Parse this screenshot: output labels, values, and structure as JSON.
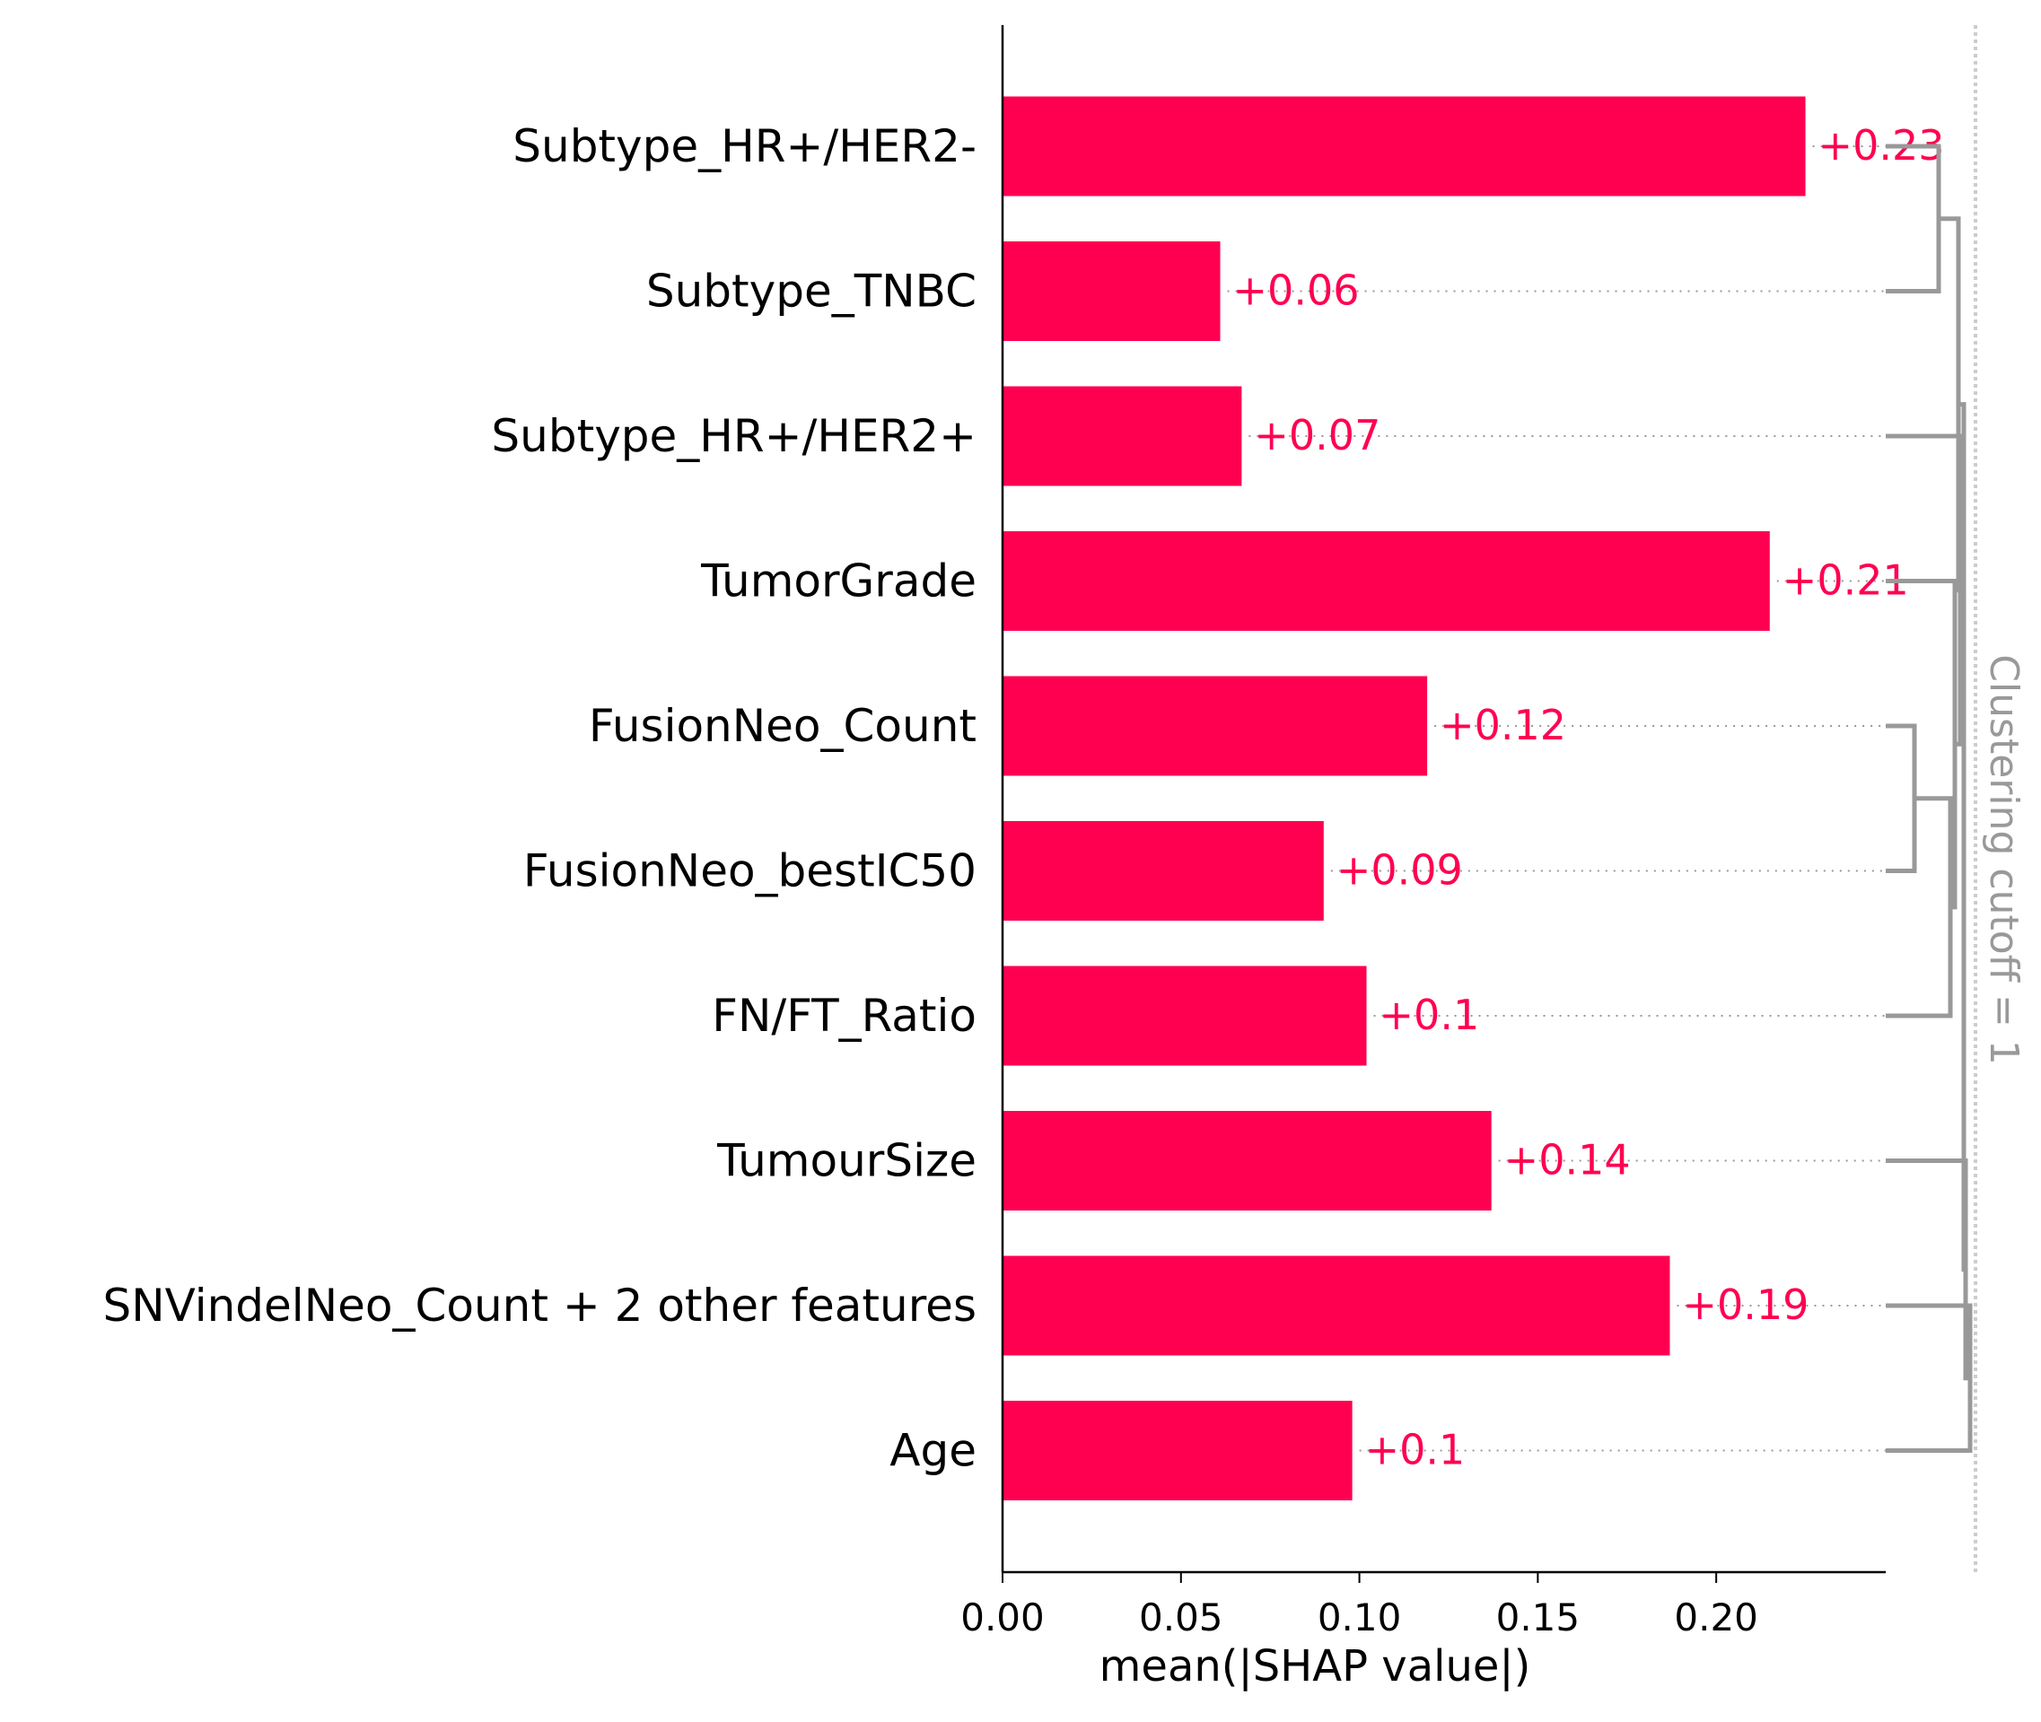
{
  "chart_data": {
    "type": "bar",
    "orientation": "horizontal",
    "categories": [
      "Subtype_HR+/HER2-",
      "Subtype_TNBC",
      "Subtype_HR+/HER2+",
      "TumorGrade",
      "FusionNeo_Count",
      "FusionNeo_bestIC50",
      "FN/FT_Ratio",
      "TumourSize",
      "SNVindelNeo_Count + 2 other features",
      "Age"
    ],
    "values": [
      0.225,
      0.061,
      0.067,
      0.215,
      0.119,
      0.09,
      0.102,
      0.137,
      0.187,
      0.098
    ],
    "data_labels": [
      "+0.23",
      "+0.06",
      "+0.07",
      "+0.21",
      "+0.12",
      "+0.09",
      "+0.1",
      "+0.14",
      "+0.19",
      "+0.1"
    ],
    "xlabel": "mean(|SHAP value|)",
    "ylabel": "",
    "xlim": [
      0,
      0.2475
    ],
    "xticks": [
      0.0,
      0.05,
      0.1,
      0.15,
      0.2
    ],
    "xtick_labels": [
      "0.00",
      "0.05",
      "0.10",
      "0.15",
      "0.20"
    ],
    "bar_color": "#ff0051",
    "label_color": "#ff0051",
    "grid": false,
    "clustering": {
      "cutoff_label": "Clustering cutoff = 1",
      "line_color": "#999999"
    }
  }
}
